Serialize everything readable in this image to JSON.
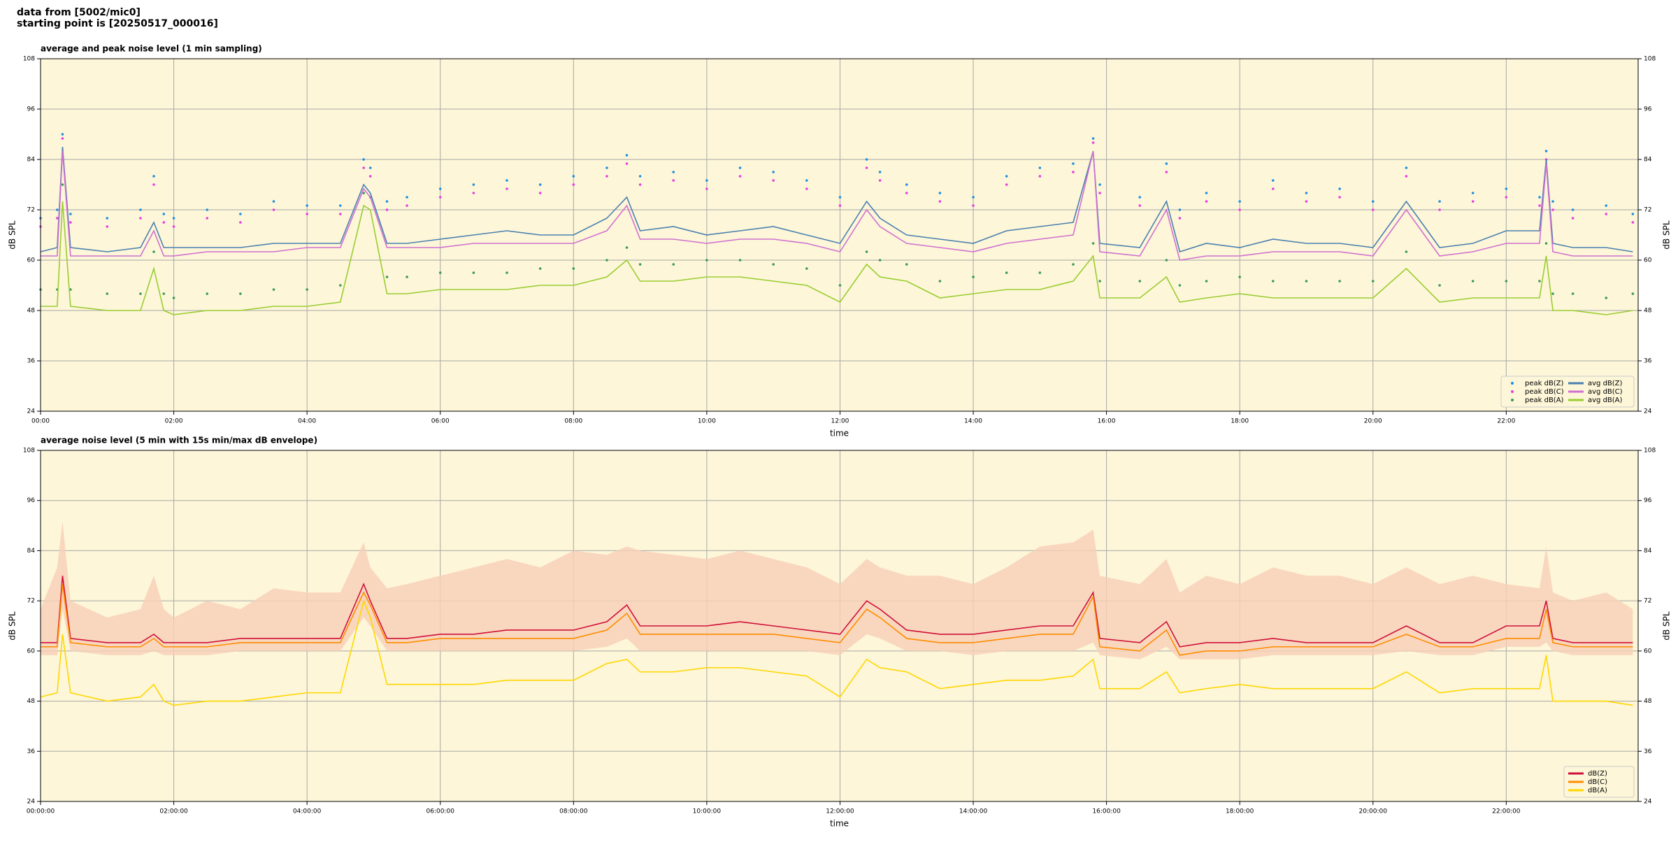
{
  "header": {
    "source": "data from [5002/mic0]",
    "start": "starting point is [20250517_000016]"
  },
  "chart_data": [
    {
      "type": "line",
      "title": "average and peak noise level (1 min sampling)",
      "xlabel": "time",
      "ylabel": "dB SPL",
      "background": "#fdf6d8",
      "grid": true,
      "legend": "lower right",
      "legend_columns": 2,
      "xlim": [
        0,
        23.98
      ],
      "ylim": [
        24,
        108
      ],
      "yticks": [
        24,
        36,
        48,
        60,
        72,
        84,
        96,
        108
      ],
      "xticks": [
        {
          "value": 0,
          "label": "00:00"
        },
        {
          "value": 2,
          "label": "02:00"
        },
        {
          "value": 4,
          "label": "04:00"
        },
        {
          "value": 6,
          "label": "06:00"
        },
        {
          "value": 8,
          "label": "08:00"
        },
        {
          "value": 10,
          "label": "10:00"
        },
        {
          "value": 12,
          "label": "12:00"
        },
        {
          "value": 14,
          "label": "14:00"
        },
        {
          "value": 16,
          "label": "16:00"
        },
        {
          "value": 18,
          "label": "18:00"
        },
        {
          "value": 20,
          "label": "20:00"
        },
        {
          "value": 22,
          "label": "22:00"
        }
      ],
      "x": [
        0,
        0.25,
        0.33,
        0.45,
        1,
        1.5,
        1.7,
        1.85,
        2,
        2.5,
        3,
        3.5,
        4,
        4.5,
        4.85,
        4.95,
        5.2,
        5.5,
        6,
        6.5,
        7,
        7.5,
        8,
        8.5,
        8.8,
        9,
        9.5,
        10,
        10.5,
        11,
        11.5,
        12,
        12.4,
        12.6,
        13,
        13.5,
        14,
        14.5,
        15,
        15.5,
        15.8,
        15.9,
        16.5,
        16.9,
        17.1,
        17.5,
        18,
        18.5,
        19,
        19.5,
        20,
        20.5,
        21,
        21.5,
        22,
        22.5,
        22.6,
        22.7,
        23,
        23.5,
        23.9
      ],
      "series": [
        {
          "name": "peak dB(Z)",
          "style": "points",
          "color": "#1f8fe0",
          "values": [
            70,
            72,
            90,
            71,
            70,
            72,
            80,
            71,
            70,
            72,
            71,
            74,
            73,
            73,
            84,
            82,
            74,
            75,
            77,
            78,
            79,
            78,
            80,
            82,
            85,
            80,
            81,
            79,
            82,
            81,
            79,
            75,
            84,
            81,
            78,
            76,
            75,
            80,
            82,
            83,
            89,
            78,
            75,
            83,
            72,
            76,
            74,
            79,
            76,
            77,
            74,
            82,
            74,
            76,
            77,
            75,
            86,
            74,
            72,
            73,
            71
          ]
        },
        {
          "name": "peak dB(C)",
          "style": "points",
          "color": "#e83ee0",
          "values": [
            68,
            70,
            89,
            69,
            68,
            70,
            78,
            69,
            68,
            70,
            69,
            72,
            71,
            71,
            82,
            80,
            72,
            73,
            75,
            76,
            77,
            76,
            78,
            80,
            83,
            78,
            79,
            77,
            80,
            79,
            77,
            73,
            82,
            79,
            76,
            74,
            73,
            78,
            80,
            81,
            88,
            76,
            73,
            81,
            70,
            74,
            72,
            77,
            74,
            75,
            72,
            80,
            72,
            74,
            75,
            73,
            84,
            72,
            70,
            71,
            69
          ]
        },
        {
          "name": "peak dB(A)",
          "style": "points",
          "color": "#3a9a5a",
          "values": [
            53,
            53,
            78,
            53,
            52,
            52,
            62,
            52,
            51,
            52,
            52,
            53,
            53,
            54,
            76,
            75,
            56,
            56,
            57,
            57,
            57,
            58,
            58,
            60,
            63,
            59,
            59,
            60,
            60,
            59,
            58,
            54,
            62,
            60,
            59,
            55,
            56,
            57,
            57,
            59,
            64,
            55,
            55,
            60,
            54,
            55,
            56,
            55,
            55,
            55,
            55,
            62,
            54,
            55,
            55,
            55,
            64,
            52,
            52,
            51,
            52
          ]
        },
        {
          "name": "avg dB(Z)",
          "style": "line",
          "color": "#4a80b0",
          "values": [
            62,
            63,
            87,
            63,
            62,
            63,
            69,
            63,
            63,
            63,
            63,
            64,
            64,
            64,
            78,
            76,
            64,
            64,
            65,
            66,
            67,
            66,
            66,
            70,
            75,
            67,
            68,
            66,
            67,
            68,
            66,
            64,
            74,
            70,
            66,
            65,
            64,
            67,
            68,
            69,
            86,
            64,
            63,
            74,
            62,
            64,
            63,
            65,
            64,
            64,
            63,
            74,
            63,
            64,
            67,
            67,
            84,
            64,
            63,
            63,
            62
          ]
        },
        {
          "name": "avg dB(C)",
          "style": "line",
          "color": "#d070d0",
          "values": [
            61,
            61,
            86,
            61,
            61,
            61,
            67,
            61,
            61,
            62,
            62,
            62,
            63,
            63,
            77,
            75,
            63,
            63,
            63,
            64,
            64,
            64,
            64,
            67,
            73,
            65,
            65,
            64,
            65,
            65,
            64,
            62,
            72,
            68,
            64,
            63,
            62,
            64,
            65,
            66,
            86,
            62,
            61,
            72,
            60,
            61,
            61,
            62,
            62,
            62,
            61,
            72,
            61,
            62,
            64,
            64,
            83,
            62,
            61,
            61,
            61
          ]
        },
        {
          "name": "avg dB(A)",
          "style": "line",
          "color": "#9acd32",
          "values": [
            49,
            49,
            74,
            49,
            48,
            48,
            58,
            48,
            47,
            48,
            48,
            49,
            49,
            50,
            73,
            72,
            52,
            52,
            53,
            53,
            53,
            54,
            54,
            56,
            60,
            55,
            55,
            56,
            56,
            55,
            54,
            50,
            59,
            56,
            55,
            51,
            52,
            53,
            53,
            55,
            61,
            51,
            51,
            56,
            50,
            51,
            52,
            51,
            51,
            51,
            51,
            58,
            50,
            51,
            51,
            51,
            61,
            48,
            48,
            47,
            48
          ]
        }
      ]
    },
    {
      "type": "line",
      "title": "average noise level (5 min with 15s min/max dB envelope)",
      "xlabel": "time",
      "ylabel": "dB SPL",
      "background": "#fdf6d8",
      "grid": true,
      "legend": "lower right",
      "legend_columns": 1,
      "xlim": [
        0,
        23.98
      ],
      "ylim": [
        24,
        108
      ],
      "yticks": [
        24,
        36,
        48,
        60,
        72,
        84,
        96,
        108
      ],
      "xticks": [
        {
          "value": 0,
          "label": "00:00:00"
        },
        {
          "value": 2,
          "label": "02:00:00"
        },
        {
          "value": 4,
          "label": "04:00:00"
        },
        {
          "value": 6,
          "label": "06:00:00"
        },
        {
          "value": 8,
          "label": "08:00:00"
        },
        {
          "value": 10,
          "label": "10:00:00"
        },
        {
          "value": 12,
          "label": "12:00:00"
        },
        {
          "value": 14,
          "label": "14:00:00"
        },
        {
          "value": 16,
          "label": "16:00:00"
        },
        {
          "value": 18,
          "label": "18:00:00"
        },
        {
          "value": 20,
          "label": "20:00:00"
        },
        {
          "value": 22,
          "label": "22:00:00"
        }
      ],
      "x": [
        0,
        0.25,
        0.33,
        0.45,
        1,
        1.5,
        1.7,
        1.85,
        2,
        2.5,
        3,
        3.5,
        4,
        4.5,
        4.85,
        4.95,
        5.2,
        5.5,
        6,
        6.5,
        7,
        7.5,
        8,
        8.5,
        8.8,
        9,
        9.5,
        10,
        10.5,
        11,
        11.5,
        12,
        12.4,
        12.6,
        13,
        13.5,
        14,
        14.5,
        15,
        15.5,
        15.8,
        15.9,
        16.5,
        16.9,
        17.1,
        17.5,
        18,
        18.5,
        19,
        19.5,
        20,
        20.5,
        21,
        21.5,
        22,
        22.5,
        22.6,
        22.7,
        23,
        23.5,
        23.9
      ],
      "envelope": {
        "color": "#f7cfb8",
        "low": [
          59,
          59,
          70,
          60,
          59,
          59,
          60,
          59,
          59,
          59,
          60,
          60,
          60,
          60,
          68,
          66,
          60,
          60,
          60,
          60,
          60,
          60,
          60,
          61,
          63,
          60,
          60,
          60,
          60,
          60,
          60,
          59,
          64,
          63,
          60,
          60,
          59,
          60,
          60,
          60,
          62,
          59,
          58,
          61,
          58,
          58,
          58,
          59,
          59,
          59,
          59,
          60,
          59,
          59,
          61,
          61,
          62,
          60,
          59,
          59,
          59
        ],
        "high": [
          70,
          80,
          91,
          72,
          68,
          70,
          78,
          70,
          68,
          72,
          70,
          75,
          74,
          74,
          86,
          80,
          75,
          76,
          78,
          80,
          82,
          80,
          84,
          83,
          85,
          84,
          83,
          82,
          84,
          82,
          80,
          76,
          82,
          80,
          78,
          78,
          76,
          80,
          85,
          86,
          89,
          78,
          76,
          82,
          74,
          78,
          76,
          80,
          78,
          78,
          76,
          80,
          76,
          78,
          76,
          75,
          85,
          74,
          72,
          74,
          70
        ]
      },
      "series": [
        {
          "name": "dB(Z)",
          "style": "line",
          "color": "#d0103a",
          "values": [
            62,
            62,
            78,
            63,
            62,
            62,
            64,
            62,
            62,
            62,
            63,
            63,
            63,
            63,
            76,
            72,
            63,
            63,
            64,
            64,
            65,
            65,
            65,
            67,
            71,
            66,
            66,
            66,
            67,
            66,
            65,
            64,
            72,
            70,
            65,
            64,
            64,
            65,
            66,
            66,
            74,
            63,
            62,
            67,
            61,
            62,
            62,
            63,
            62,
            62,
            62,
            66,
            62,
            62,
            66,
            66,
            72,
            63,
            62,
            62,
            62
          ]
        },
        {
          "name": "dB(C)",
          "style": "line",
          "color": "#ff8c00",
          "values": [
            61,
            61,
            76,
            62,
            61,
            61,
            63,
            61,
            61,
            61,
            62,
            62,
            62,
            62,
            74,
            71,
            62,
            62,
            63,
            63,
            63,
            63,
            63,
            65,
            69,
            64,
            64,
            64,
            64,
            64,
            63,
            62,
            70,
            68,
            63,
            62,
            62,
            63,
            64,
            64,
            73,
            61,
            60,
            65,
            59,
            60,
            60,
            61,
            61,
            61,
            61,
            64,
            61,
            61,
            63,
            63,
            70,
            62,
            61,
            61,
            61
          ]
        },
        {
          "name": "dB(A)",
          "style": "line",
          "color": "#ffd700",
          "values": [
            49,
            50,
            64,
            50,
            48,
            49,
            52,
            48,
            47,
            48,
            48,
            49,
            50,
            50,
            72,
            68,
            52,
            52,
            52,
            52,
            53,
            53,
            53,
            57,
            58,
            55,
            55,
            56,
            56,
            55,
            54,
            49,
            58,
            56,
            55,
            51,
            52,
            53,
            53,
            54,
            58,
            51,
            51,
            55,
            50,
            51,
            52,
            51,
            51,
            51,
            51,
            55,
            50,
            51,
            51,
            51,
            59,
            48,
            48,
            48,
            47
          ]
        }
      ]
    }
  ]
}
